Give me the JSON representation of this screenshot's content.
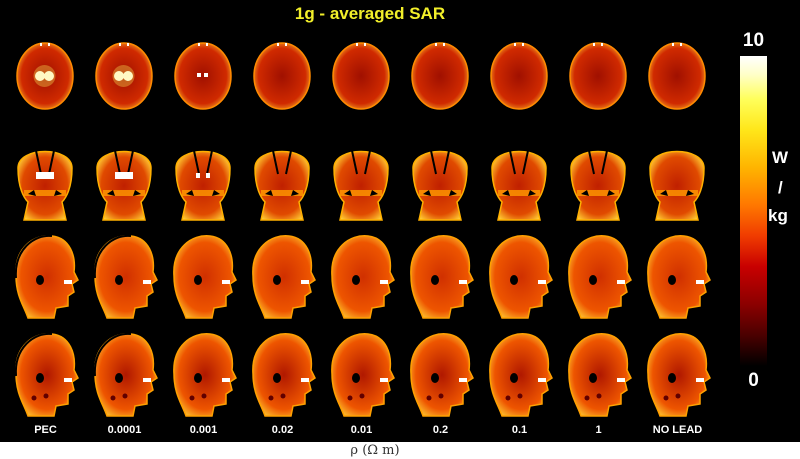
{
  "title": "1g - averaged SAR",
  "colorbar": {
    "max_label": "10",
    "min_label": "0",
    "unit_line1": "W",
    "unit_line2": "/",
    "unit_line3": "kg",
    "colormap": "black-red-orange-yellow-white (hot)"
  },
  "columns": [
    "PEC",
    "0.0001",
    "0.001",
    "0.02",
    "0.01",
    "0.2",
    "0.1",
    "1",
    "NO LEAD"
  ],
  "x_axis_label": "ρ  (Ω  m)",
  "rows": [
    "axial",
    "coronal",
    "sagittal",
    "sagittal"
  ],
  "colors": {
    "background": "#000000",
    "title": "#f2ef2a",
    "label": "#ffffff",
    "axis_label": "#333333"
  }
}
